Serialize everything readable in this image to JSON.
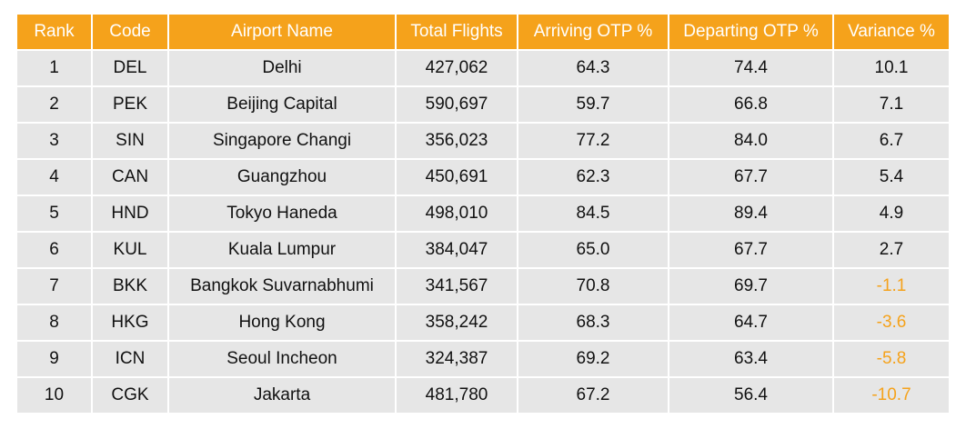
{
  "chart_data": {
    "type": "table",
    "columns": [
      "Rank",
      "Code",
      "Airport Name",
      "Total Flights",
      "Arriving OTP %",
      "Departing OTP %",
      "Variance %"
    ],
    "rows": [
      [
        "1",
        "DEL",
        "Delhi",
        "427,062",
        "64.3",
        "74.4",
        "10.1"
      ],
      [
        "2",
        "PEK",
        "Beijing Capital",
        "590,697",
        "59.7",
        "66.8",
        "7.1"
      ],
      [
        "3",
        "SIN",
        "Singapore Changi",
        "356,023",
        "77.2",
        "84.0",
        "6.7"
      ],
      [
        "4",
        "CAN",
        "Guangzhou",
        "450,691",
        "62.3",
        "67.7",
        "5.4"
      ],
      [
        "5",
        "HND",
        "Tokyo Haneda",
        "498,010",
        "84.5",
        "89.4",
        "4.9"
      ],
      [
        "6",
        "KUL",
        "Kuala Lumpur",
        "384,047",
        "65.0",
        "67.7",
        "2.7"
      ],
      [
        "7",
        "BKK",
        "Bangkok Suvarnabhumi",
        "341,567",
        "70.8",
        "69.7",
        "-1.1"
      ],
      [
        "8",
        "HKG",
        "Hong Kong",
        "358,242",
        "68.3",
        "64.7",
        "-3.6"
      ],
      [
        "9",
        "ICN",
        "Seoul Incheon",
        "324,387",
        "69.2",
        "63.4",
        "-5.8"
      ],
      [
        "10",
        "CGK",
        "Jakarta",
        "481,780",
        "67.2",
        "56.4",
        "-10.7"
      ]
    ],
    "header_color": "#f5a21b",
    "row_color": "#e6e6e6",
    "negative_value_color": "#f5a21b"
  }
}
